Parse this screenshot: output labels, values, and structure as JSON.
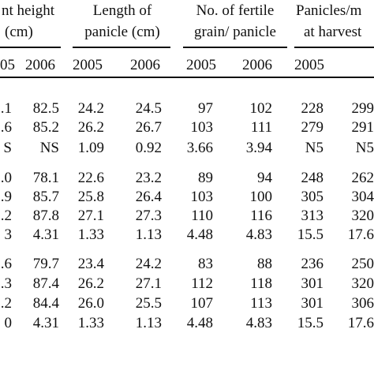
{
  "headers": {
    "plant_height": [
      "nt height",
      "(cm)"
    ],
    "panicle_length": [
      "Length of",
      "panicle (cm)"
    ],
    "fertile_grain": [
      "No. of fertile",
      "grain/ panicle"
    ],
    "panicles": [
      "Panicles/m",
      "at harvest"
    ]
  },
  "years": [
    "05",
    "2006",
    "2005",
    "2006",
    "2005",
    "2006",
    "2005"
  ],
  "rows": [
    [
      ".1",
      "82.5",
      "24.2",
      "24.5",
      "97",
      "102",
      "228",
      "299"
    ],
    [
      ".6",
      "85.2",
      "26.2",
      "26.7",
      "103",
      "111",
      "279",
      "291"
    ],
    [
      "S",
      "NS",
      "1.09",
      "0.92",
      "3.66",
      "3.94",
      "N5",
      "N5"
    ],
    [
      ".0",
      "78.1",
      "22.6",
      "23.2",
      "89",
      "94",
      "248",
      "262"
    ],
    [
      ".9",
      "85.7",
      "25.8",
      "26.4",
      "103",
      "100",
      "305",
      "304"
    ],
    [
      ".2",
      "87.8",
      "27.1",
      "27.3",
      "110",
      "116",
      "313",
      "320"
    ],
    [
      "3",
      "4.31",
      "1.33",
      "1.13",
      "4.48",
      "4.83",
      "15.5",
      "17.6"
    ],
    [
      ".6",
      "79.7",
      "23.4",
      "24.2",
      "83",
      "88",
      "236",
      "250"
    ],
    [
      ".3",
      "87.4",
      "26.2",
      "27.1",
      "112",
      "118",
      "301",
      "320"
    ],
    [
      ".2",
      "84.4",
      "26.0",
      "25.5",
      "107",
      "113",
      "301",
      "306"
    ],
    [
      "0",
      "4.31",
      "1.33",
      "1.13",
      "4.48",
      "4.83",
      "15.5",
      "17.6"
    ]
  ]
}
